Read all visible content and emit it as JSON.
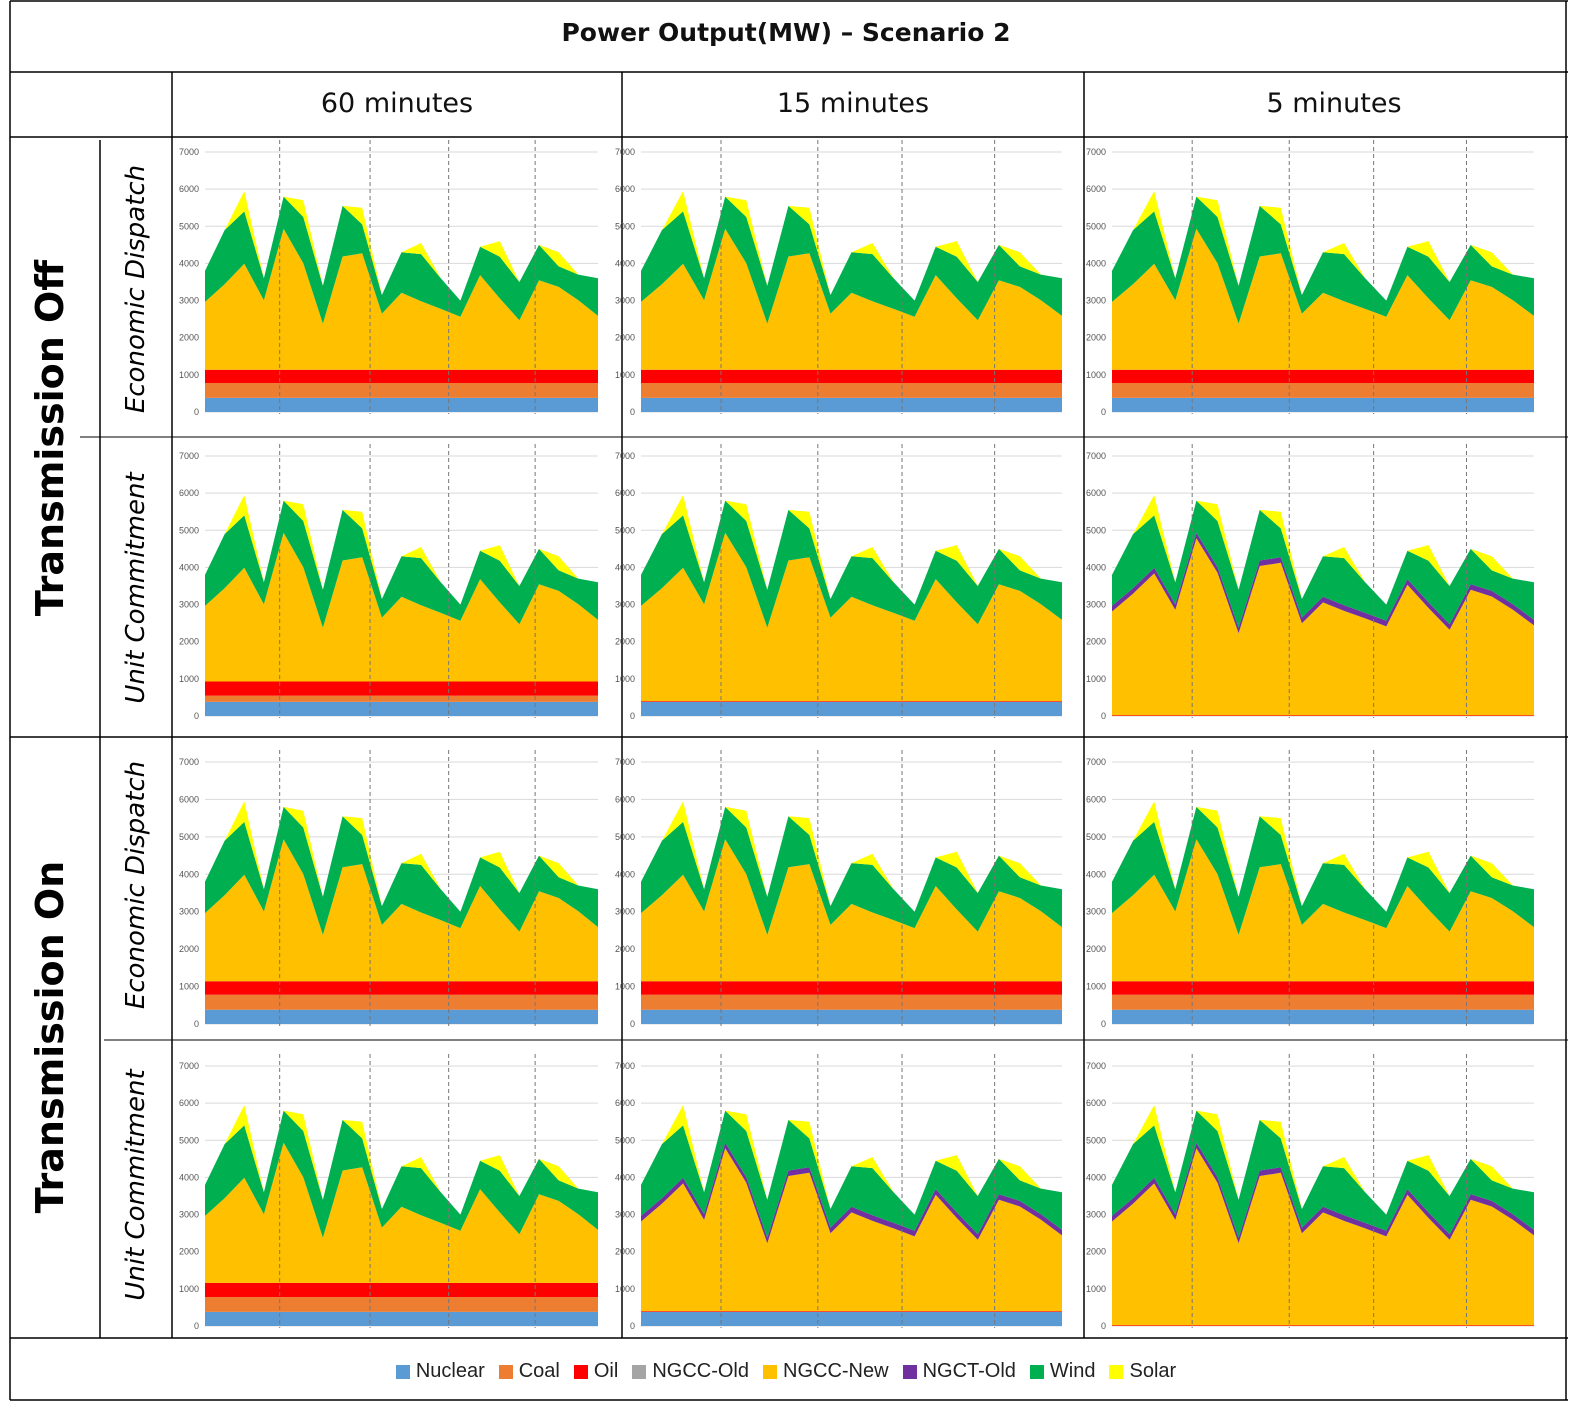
{
  "title": "Power Output(MW) – Scenario 2",
  "column_headers": [
    "60 minutes",
    "15 minutes",
    "5 minutes"
  ],
  "transmission_labels": [
    "Transmission Off",
    "Transmission On"
  ],
  "mode_labels": [
    "Economic Dispatch",
    "Unit Commitment",
    "Economic Dispatch",
    "Unit Commitment"
  ],
  "colors": {
    "Nuclear": "#5B9BD5",
    "Coal": "#ED7D31",
    "Oil": "#FF0000",
    "NGCC-Old": "#A5A5A5",
    "NGCC-New": "#FFC000",
    "NGCT-Old": "#7030A0",
    "Wind": "#00B050",
    "Solar": "#FFFF00"
  },
  "legend": [
    "Nuclear",
    "Coal",
    "Oil",
    "NGCC-Old",
    "NGCC-New",
    "NGCT-Old",
    "Wind",
    "Solar"
  ],
  "chart_data": {
    "type": "area",
    "stacked": true,
    "ylim": [
      0,
      7000
    ],
    "yticks": [
      "0",
      "1000",
      "2000",
      "3000",
      "4000",
      "5000",
      "6000",
      "7000"
    ],
    "series_names": [
      "Nuclear",
      "Coal",
      "Oil",
      "NGCC-Old",
      "NGCC-New",
      "NGCT-Old",
      "Wind",
      "Solar"
    ],
    "x_points": 21,
    "total_load_profile": [
      3800,
      4900,
      5950,
      3600,
      5800,
      5700,
      3400,
      5550,
      5500,
      3150,
      4300,
      4550,
      3600,
      3000,
      4450,
      4600,
      3500,
      4500,
      4300,
      3700,
      3600
    ],
    "solar_profile": [
      0,
      0,
      550,
      0,
      0,
      450,
      0,
      0,
      450,
      0,
      0,
      300,
      0,
      0,
      0,
      420,
      0,
      0,
      380,
      0,
      0
    ],
    "panels": [
      {
        "row": "Transmission Off",
        "mode": "Economic Dispatch",
        "interval": "60 minutes",
        "stack": {
          "Nuclear": 380,
          "Coal": 400,
          "Oil": 360,
          "NGCT-Old": 0
        }
      },
      {
        "row": "Transmission Off",
        "mode": "Economic Dispatch",
        "interval": "15 minutes",
        "stack": {
          "Nuclear": 380,
          "Coal": 400,
          "Oil": 360,
          "NGCT-Old": 0
        }
      },
      {
        "row": "Transmission Off",
        "mode": "Economic Dispatch",
        "interval": "5 minutes",
        "stack": {
          "Nuclear": 380,
          "Coal": 400,
          "Oil": 360,
          "NGCT-Old": 0
        }
      },
      {
        "row": "Transmission Off",
        "mode": "Unit Commitment",
        "interval": "60 minutes",
        "stack": {
          "Nuclear": 380,
          "Coal": 170,
          "Oil": 380,
          "NGCT-Old": 0
        }
      },
      {
        "row": "Transmission Off",
        "mode": "Unit Commitment",
        "interval": "15 minutes",
        "stack": {
          "Nuclear": 380,
          "Coal": 0,
          "Oil": 20,
          "NGCT-Old": 0
        }
      },
      {
        "row": "Transmission Off",
        "mode": "Unit Commitment",
        "interval": "5 minutes",
        "stack": {
          "Nuclear": 0,
          "Coal": 0,
          "Oil": 20,
          "NGCT-Old": 150
        }
      },
      {
        "row": "Transmission On",
        "mode": "Economic Dispatch",
        "interval": "60 minutes",
        "stack": {
          "Nuclear": 380,
          "Coal": 400,
          "Oil": 360,
          "NGCT-Old": 0
        }
      },
      {
        "row": "Transmission On",
        "mode": "Economic Dispatch",
        "interval": "15 minutes",
        "stack": {
          "Nuclear": 380,
          "Coal": 400,
          "Oil": 360,
          "NGCT-Old": 0
        }
      },
      {
        "row": "Transmission On",
        "mode": "Economic Dispatch",
        "interval": "5 minutes",
        "stack": {
          "Nuclear": 380,
          "Coal": 400,
          "Oil": 360,
          "NGCT-Old": 0
        }
      },
      {
        "row": "Transmission On",
        "mode": "Unit Commitment",
        "interval": "60 minutes",
        "stack": {
          "Nuclear": 380,
          "Coal": 400,
          "Oil": 380,
          "NGCT-Old": 0
        }
      },
      {
        "row": "Transmission On",
        "mode": "Unit Commitment",
        "interval": "15 minutes",
        "stack": {
          "Nuclear": 380,
          "Coal": 0,
          "Oil": 20,
          "NGCT-Old": 150
        }
      },
      {
        "row": "Transmission On",
        "mode": "Unit Commitment",
        "interval": "5 minutes",
        "stack": {
          "Nuclear": 0,
          "Coal": 0,
          "Oil": 20,
          "NGCT-Old": 150
        }
      }
    ]
  }
}
